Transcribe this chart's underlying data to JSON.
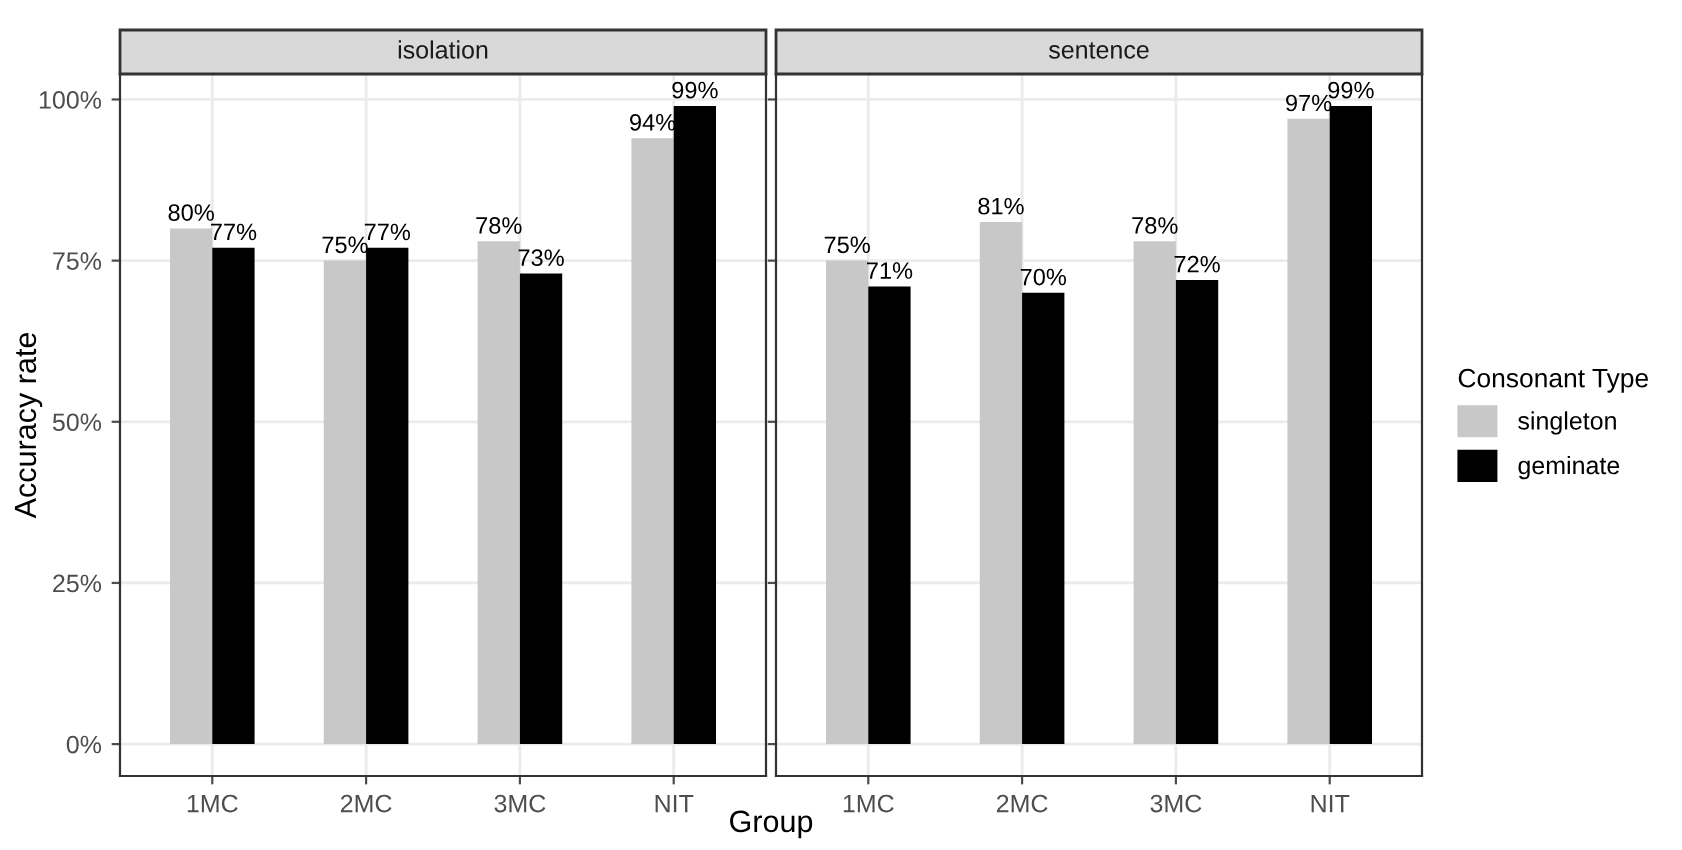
{
  "chart_data": [
    {
      "type": "bar",
      "title": "isolation",
      "xlabel": "Group",
      "ylabel": "Accuracy rate",
      "categories": [
        "1MC",
        "2MC",
        "3MC",
        "NIT"
      ],
      "series": [
        {
          "color": "#c8c8c8",
          "values": [
            80,
            75,
            78,
            94
          ],
          "value_labels": [
            "80%",
            "75%",
            "78%",
            "94%"
          ]
        },
        {
          "color": "#000000",
          "values": [
            77,
            77,
            73,
            99
          ],
          "value_labels": [
            "77%",
            "77%",
            "73%",
            "99%"
          ]
        }
      ],
      "ylim": [
        -4.95,
        103.95
      ],
      "yticks": [
        {
          "value": 0,
          "label": "0%"
        },
        {
          "value": 25,
          "label": "25%"
        },
        {
          "value": 50,
          "label": "50%"
        },
        {
          "value": 75,
          "label": "75%"
        },
        {
          "value": 100,
          "label": "100%"
        }
      ],
      "grid": true
    },
    {
      "type": "bar",
      "title": "sentence",
      "categories": [
        "1MC",
        "2MC",
        "3MC",
        "NIT"
      ],
      "series": [
        {
          "name": "singleton",
          "color": "#c8c8c8",
          "values": [
            75,
            81,
            78,
            97
          ],
          "value_labels": [
            "75%",
            "81%",
            "78%",
            "97%"
          ]
        },
        {
          "name": "geminate",
          "color": "#000000",
          "values": [
            71,
            70,
            72,
            99
          ],
          "value_labels": [
            "71%",
            "70%",
            "72%",
            "99%"
          ]
        }
      ],
      "ylim": [
        -4.95,
        103.95
      ],
      "yticks": [
        {
          "value": 0,
          "label": null
        },
        {
          "value": 25,
          "label": null
        },
        {
          "value": 50,
          "label": null
        },
        {
          "value": 75,
          "label": null
        },
        {
          "value": 100,
          "label": null
        }
      ],
      "tick_labels": "x",
      "grid": true,
      "legend": "right",
      "legend_title": "Consonant Type"
    }
  ]
}
